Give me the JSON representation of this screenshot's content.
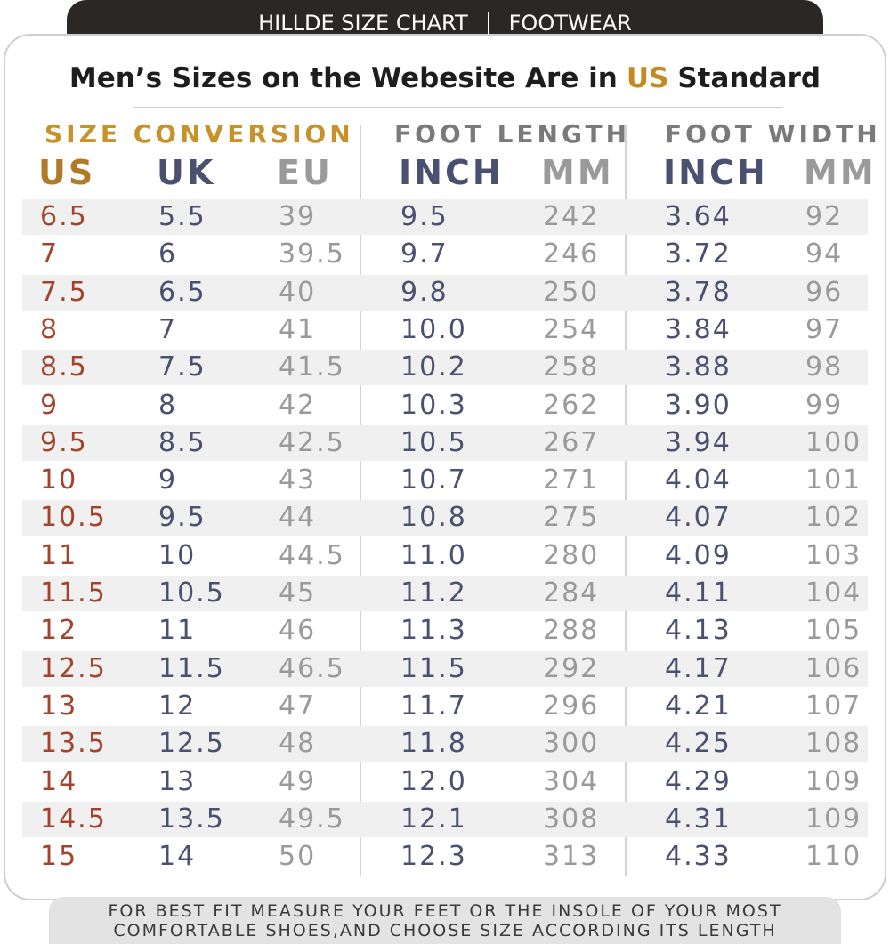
{
  "header": {
    "left": "HILLDE SIZE CHART",
    "right": "FOOTWEAR"
  },
  "subtitle": {
    "before": "Men’s Sizes on the Webesite Are in",
    "highlight": "US",
    "after": "Standard"
  },
  "groups": [
    "SIZE CONVERSION",
    "FOOT LENGTH",
    "FOOT WIDTH"
  ],
  "columns": [
    "US",
    "UK",
    "EU",
    "INCH",
    "MM",
    "INCH",
    "MM"
  ],
  "rows": [
    [
      "6.5",
      "5.5",
      "39",
      "9.5",
      "242",
      "3.64",
      "92"
    ],
    [
      "7",
      "6",
      "39.5",
      "9.7",
      "246",
      "3.72",
      "94"
    ],
    [
      "7.5",
      "6.5",
      "40",
      "9.8",
      "250",
      "3.78",
      "96"
    ],
    [
      "8",
      "7",
      "41",
      "10.0",
      "254",
      "3.84",
      "97"
    ],
    [
      "8.5",
      "7.5",
      "41.5",
      "10.2",
      "258",
      "3.88",
      "98"
    ],
    [
      "9",
      "8",
      "42",
      "10.3",
      "262",
      "3.90",
      "99"
    ],
    [
      "9.5",
      "8.5",
      "42.5",
      "10.5",
      "267",
      "3.94",
      "100"
    ],
    [
      "10",
      "9",
      "43",
      "10.7",
      "271",
      "4.04",
      "101"
    ],
    [
      "10.5",
      "9.5",
      "44",
      "10.8",
      "275",
      "4.07",
      "102"
    ],
    [
      "11",
      "10",
      "44.5",
      "11.0",
      "280",
      "4.09",
      "103"
    ],
    [
      "11.5",
      "10.5",
      "45",
      "11.2",
      "284",
      "4.11",
      "104"
    ],
    [
      "12",
      "11",
      "46",
      "11.3",
      "288",
      "4.13",
      "105"
    ],
    [
      "12.5",
      "11.5",
      "46.5",
      "11.5",
      "292",
      "4.17",
      "106"
    ],
    [
      "13",
      "12",
      "47",
      "11.7",
      "296",
      "4.21",
      "107"
    ],
    [
      "13.5",
      "12.5",
      "48",
      "11.8",
      "300",
      "4.25",
      "108"
    ],
    [
      "14",
      "13",
      "49",
      "12.0",
      "304",
      "4.29",
      "109"
    ],
    [
      "14.5",
      "13.5",
      "49.5",
      "12.1",
      "308",
      "4.31",
      "109"
    ],
    [
      "15",
      "14",
      "50",
      "12.3",
      "313",
      "4.33",
      "110"
    ]
  ],
  "footer": [
    "FOR BEST FIT MEASURE YOUR FEET OR THE INSOLE OF YOUR MOST",
    "COMFORTABLE SHOES,AND CHOOSE SIZE ACCORDING ITS LENGTH"
  ]
}
